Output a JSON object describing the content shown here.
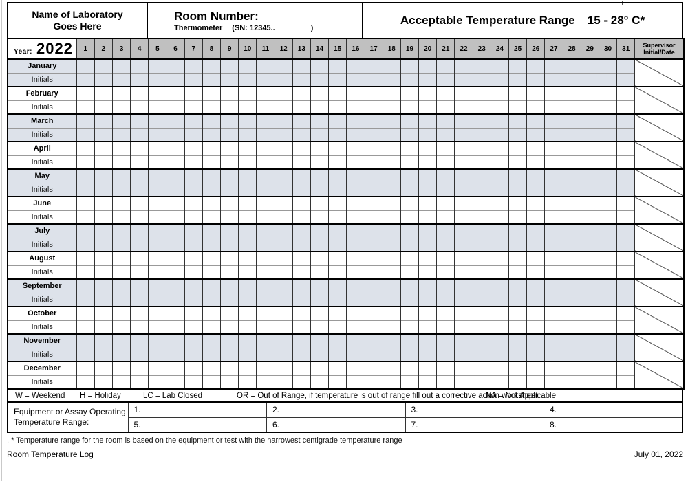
{
  "header": {
    "lab_name_line1": "Name of Laboratory",
    "lab_name_line2": "Goes Here",
    "room_label": "Room Number:",
    "thermometer_label": "Thermometer",
    "thermometer_sn": "(SN: 12345..",
    "thermometer_sn_close": ")",
    "range_title": "Acceptable Temperature Range",
    "range_value": "15 - 28° C*"
  },
  "table": {
    "year_label": "Year:",
    "year_value": "2022",
    "days": [
      "1",
      "2",
      "3",
      "4",
      "5",
      "6",
      "7",
      "8",
      "9",
      "10",
      "11",
      "12",
      "13",
      "14",
      "15",
      "16",
      "17",
      "18",
      "19",
      "20",
      "21",
      "22",
      "23",
      "24",
      "25",
      "26",
      "27",
      "28",
      "29",
      "30",
      "31"
    ],
    "supervisor_header_line1": "Supervisor",
    "supervisor_header_line2": "Initial/Date",
    "initials_label": "Initials",
    "months": [
      {
        "name": "January",
        "shaded": true
      },
      {
        "name": "February",
        "shaded": false
      },
      {
        "name": "March",
        "shaded": true
      },
      {
        "name": "April",
        "shaded": false
      },
      {
        "name": "May",
        "shaded": true
      },
      {
        "name": "June",
        "shaded": false
      },
      {
        "name": "July",
        "shaded": true
      },
      {
        "name": "August",
        "shaded": false
      },
      {
        "name": "September",
        "shaded": true
      },
      {
        "name": "October",
        "shaded": false
      },
      {
        "name": "November",
        "shaded": true
      },
      {
        "name": "December",
        "shaded": false
      }
    ],
    "colors": {
      "shaded_row": "#dde2ea",
      "header_gray": "#c0c0c0"
    }
  },
  "legend": {
    "items": [
      "W = Weekend",
      "H = Holiday",
      "LC = Lab Closed",
      "OR = Out of Range, if temperature is out of range fill out a corrective action worksheet.",
      "NA = Not Applicable"
    ]
  },
  "equipment": {
    "label_line1": "Equipment or Assay Operating",
    "label_line2": "Temperature Range:",
    "cells_row1": [
      "1.",
      "2.",
      "3.",
      "4."
    ],
    "cells_row2": [
      "5.",
      "6.",
      "7.",
      "8."
    ]
  },
  "footer": {
    "footnote": ". * Temperature range for the room is based on the equipment or test with the narrowest centigrade temperature range",
    "doc_title": "Room Temperature Log",
    "doc_date": "July 01, 2022"
  }
}
